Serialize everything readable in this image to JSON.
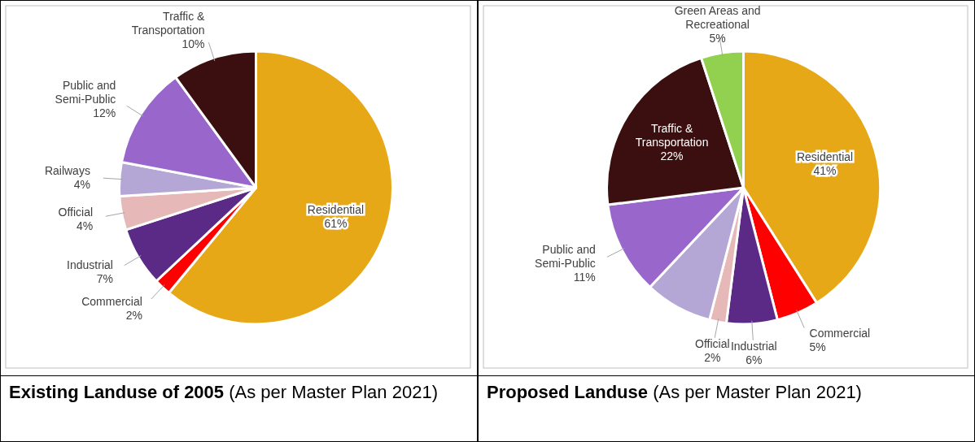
{
  "chart_data": [
    {
      "type": "pie",
      "title": "Existing Landuse of 2005",
      "subtitle": "(As per Master Plan 2021)",
      "categories": [
        "Residential",
        "Commercial",
        "Industrial",
        "Official",
        "Railways",
        "Public and Semi-Public",
        "Traffic & Transportation"
      ],
      "values": [
        61,
        2,
        7,
        4,
        4,
        12,
        10
      ],
      "value_labels": [
        "61%",
        "2%",
        "7%",
        "4%",
        "4%",
        "12%",
        "10%"
      ],
      "colors": [
        "#e6a817",
        "#ff0000",
        "#5b2a86",
        "#e6b8b7",
        "#b4a7d6",
        "#9966cc",
        "#3b0f0f"
      ]
    },
    {
      "type": "pie",
      "title": "Proposed Landuse",
      "subtitle": "(As per Master Plan 2021)",
      "categories": [
        "Residential",
        "Commercial",
        "Industrial",
        "Official",
        null,
        "Public and Semi-Public",
        "Traffic & Transportation",
        "Green Areas and Recreational"
      ],
      "values": [
        41,
        5,
        6,
        2,
        8,
        11,
        22,
        5
      ],
      "value_labels": [
        "41%",
        "5%",
        "6%",
        "2%",
        null,
        "11%",
        "22%",
        "5%"
      ],
      "colors": [
        "#e6a817",
        "#ff0000",
        "#5b2a86",
        "#e6b8b7",
        "#b4a7d6",
        "#9966cc",
        "#3b0f0f",
        "#92d050"
      ]
    }
  ]
}
